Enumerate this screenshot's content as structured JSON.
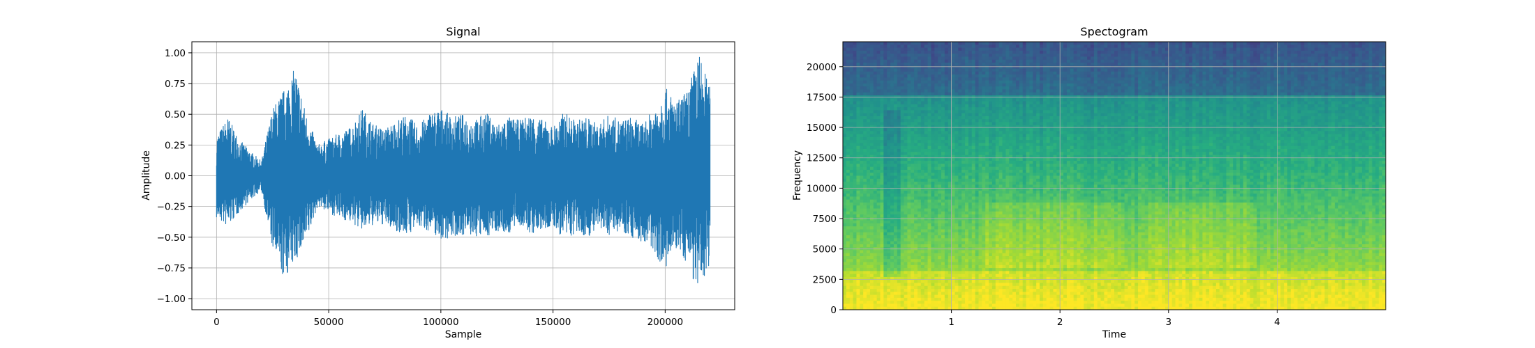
{
  "chart_data": [
    {
      "type": "line",
      "title": "Signal",
      "xlabel": "Sample",
      "ylabel": "Amplitude",
      "xlim": [
        -11000,
        231000
      ],
      "ylim": [
        -1.09,
        1.09
      ],
      "xticks": [
        0,
        50000,
        100000,
        150000,
        200000
      ],
      "xtick_labels": [
        "0",
        "50000",
        "100000",
        "150000",
        "200000"
      ],
      "yticks": [
        -1.0,
        -0.75,
        -0.5,
        -0.25,
        0.0,
        0.25,
        0.5,
        0.75,
        1.0
      ],
      "ytick_labels": [
        "−1.00",
        "−0.75",
        "−0.50",
        "−0.25",
        "0.00",
        "0.25",
        "0.50",
        "0.75",
        "1.00"
      ],
      "grid": true,
      "color": "#1f77b4",
      "series": [
        {
          "x": [
            0,
            5000,
            10000,
            15000,
            20000,
            25000,
            30000,
            35000,
            40000,
            45000,
            50000,
            55000,
            60000,
            65000,
            70000,
            75000,
            80000,
            85000,
            90000,
            95000,
            100000,
            105000,
            110000,
            115000,
            120000,
            125000,
            130000,
            135000,
            140000,
            145000,
            150000,
            155000,
            160000,
            165000,
            170000,
            175000,
            180000,
            185000,
            190000,
            195000,
            200000,
            205000,
            210000,
            215000,
            220000
          ],
          "upper": [
            0.32,
            0.48,
            0.3,
            0.2,
            0.12,
            0.55,
            0.7,
            0.88,
            0.5,
            0.25,
            0.3,
            0.35,
            0.4,
            0.55,
            0.42,
            0.38,
            0.45,
            0.5,
            0.4,
            0.52,
            0.55,
            0.48,
            0.5,
            0.45,
            0.52,
            0.42,
            0.48,
            0.45,
            0.5,
            0.46,
            0.4,
            0.52,
            0.45,
            0.48,
            0.42,
            0.5,
            0.45,
            0.48,
            0.42,
            0.55,
            0.72,
            0.6,
            0.7,
            1.0,
            0.72
          ],
          "lower": [
            -0.35,
            -0.42,
            -0.3,
            -0.2,
            -0.12,
            -0.6,
            -0.85,
            -0.7,
            -0.55,
            -0.25,
            -0.3,
            -0.35,
            -0.38,
            -0.45,
            -0.4,
            -0.4,
            -0.45,
            -0.48,
            -0.42,
            -0.45,
            -0.52,
            -0.5,
            -0.48,
            -0.5,
            -0.5,
            -0.45,
            -0.48,
            -0.4,
            -0.48,
            -0.45,
            -0.42,
            -0.52,
            -0.48,
            -0.5,
            -0.45,
            -0.48,
            -0.44,
            -0.5,
            -0.55,
            -0.62,
            -0.78,
            -0.6,
            -0.72,
            -0.98,
            -0.7
          ]
        }
      ]
    },
    {
      "type": "heatmap",
      "title": "Spectogram",
      "xlabel": "Time",
      "ylabel": "Frequency",
      "xlim": [
        0,
        5.0
      ],
      "ylim": [
        0,
        22050
      ],
      "xticks": [
        1,
        2,
        3,
        4
      ],
      "xtick_labels": [
        "1",
        "2",
        "3",
        "4"
      ],
      "yticks": [
        0,
        2500,
        5000,
        7500,
        10000,
        12500,
        15000,
        17500,
        20000
      ],
      "ytick_labels": [
        "0",
        "2500",
        "5000",
        "7500",
        "10000",
        "12500",
        "15000",
        "17500",
        "20000"
      ],
      "grid": true,
      "colormap": "viridis"
    }
  ]
}
